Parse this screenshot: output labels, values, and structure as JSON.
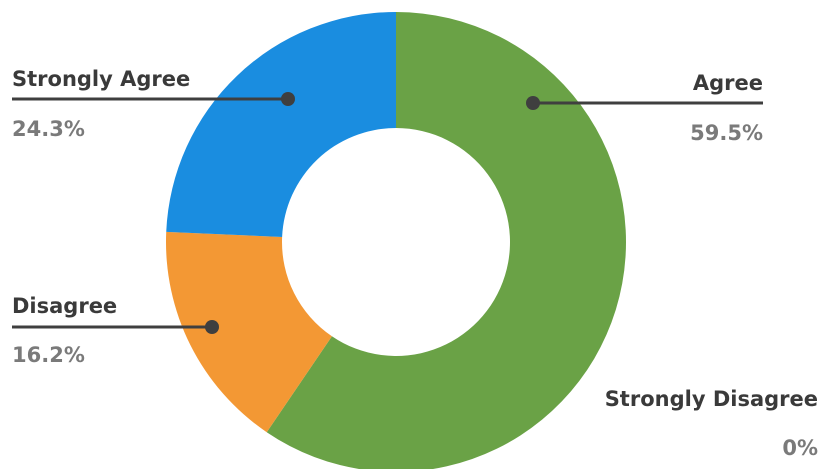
{
  "chart_data": {
    "type": "pie",
    "donut": true,
    "slices": [
      {
        "label": "Agree",
        "value": 59.5,
        "value_label": "59.5%",
        "color": "#6aa246"
      },
      {
        "label": "Disagree",
        "value": 16.2,
        "value_label": "16.2%",
        "color": "#f39834"
      },
      {
        "label": "Strongly Agree",
        "value": 24.3,
        "value_label": "24.3%",
        "color": "#1a8de0"
      },
      {
        "label": "Strongly Disagree",
        "value": 0,
        "value_label": "0%",
        "color": "#8a8a8a"
      }
    ]
  }
}
